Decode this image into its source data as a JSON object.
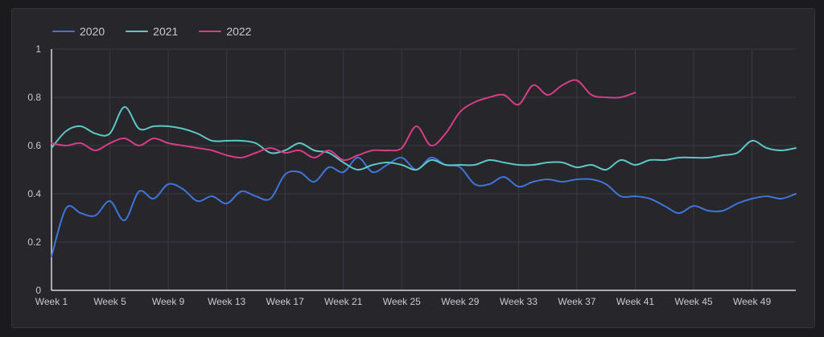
{
  "chart_data": {
    "type": "line",
    "title": "",
    "xlabel": "",
    "ylabel": "",
    "ylim": [
      0,
      1
    ],
    "yticks": [
      0,
      0.2,
      0.4,
      0.6,
      0.8,
      1
    ],
    "ytick_labels": [
      "0",
      "0.2",
      "0.4",
      "0.6",
      "0.8",
      "1"
    ],
    "xticks": [
      1,
      5,
      9,
      13,
      17,
      21,
      25,
      29,
      33,
      37,
      41,
      45,
      49
    ],
    "xtick_labels": [
      "Week 1",
      "Week 5",
      "Week 9",
      "Week 13",
      "Week 17",
      "Week 21",
      "Week 25",
      "Week 29",
      "Week 33",
      "Week 37",
      "Week 41",
      "Week 45",
      "Week 49"
    ],
    "xlim": [
      1,
      52
    ],
    "grid": true,
    "legend_position": "top-left",
    "series": [
      {
        "name": "2020",
        "color": "#3f74d8",
        "x": [
          1,
          2,
          3,
          4,
          5,
          6,
          7,
          8,
          9,
          10,
          11,
          12,
          13,
          14,
          15,
          16,
          17,
          18,
          19,
          20,
          21,
          22,
          23,
          24,
          25,
          26,
          27,
          28,
          29,
          30,
          31,
          32,
          33,
          34,
          35,
          36,
          37,
          38,
          39,
          40,
          41,
          42,
          43,
          44,
          45,
          46,
          47,
          48,
          49,
          50,
          51,
          52
        ],
        "values": [
          0.14,
          0.34,
          0.32,
          0.31,
          0.37,
          0.29,
          0.41,
          0.38,
          0.44,
          0.42,
          0.37,
          0.39,
          0.36,
          0.41,
          0.39,
          0.38,
          0.48,
          0.49,
          0.45,
          0.51,
          0.49,
          0.55,
          0.49,
          0.52,
          0.55,
          0.5,
          0.55,
          0.52,
          0.51,
          0.44,
          0.44,
          0.47,
          0.43,
          0.45,
          0.46,
          0.45,
          0.46,
          0.46,
          0.44,
          0.39,
          0.39,
          0.38,
          0.35,
          0.32,
          0.35,
          0.33,
          0.33,
          0.36,
          0.38,
          0.39,
          0.38,
          0.4
        ]
      },
      {
        "name": "2021",
        "color": "#5ec6c4",
        "x": [
          1,
          2,
          3,
          4,
          5,
          6,
          7,
          8,
          9,
          10,
          11,
          12,
          13,
          14,
          15,
          16,
          17,
          18,
          19,
          20,
          21,
          22,
          23,
          24,
          25,
          26,
          27,
          28,
          29,
          30,
          31,
          32,
          33,
          34,
          35,
          36,
          37,
          38,
          39,
          40,
          41,
          42,
          43,
          44,
          45,
          46,
          47,
          48,
          49,
          50,
          51,
          52
        ],
        "values": [
          0.59,
          0.66,
          0.68,
          0.65,
          0.65,
          0.76,
          0.67,
          0.68,
          0.68,
          0.67,
          0.65,
          0.62,
          0.62,
          0.62,
          0.61,
          0.57,
          0.58,
          0.61,
          0.58,
          0.57,
          0.53,
          0.5,
          0.52,
          0.53,
          0.52,
          0.5,
          0.54,
          0.52,
          0.52,
          0.52,
          0.54,
          0.53,
          0.52,
          0.52,
          0.53,
          0.53,
          0.51,
          0.52,
          0.5,
          0.54,
          0.52,
          0.54,
          0.54,
          0.55,
          0.55,
          0.55,
          0.56,
          0.57,
          0.62,
          0.59,
          0.58,
          0.59
        ]
      },
      {
        "name": "2022",
        "color": "#d63d86",
        "x": [
          1,
          2,
          3,
          4,
          5,
          6,
          7,
          8,
          9,
          10,
          11,
          12,
          13,
          14,
          15,
          16,
          17,
          18,
          19,
          20,
          21,
          22,
          23,
          24,
          25,
          26,
          27,
          28,
          29,
          30,
          31,
          32,
          33,
          34,
          35,
          36,
          37,
          38,
          39,
          40,
          41
        ],
        "values": [
          0.61,
          0.6,
          0.61,
          0.58,
          0.61,
          0.63,
          0.6,
          0.63,
          0.61,
          0.6,
          0.59,
          0.58,
          0.56,
          0.55,
          0.57,
          0.59,
          0.57,
          0.58,
          0.55,
          0.58,
          0.54,
          0.56,
          0.58,
          0.58,
          0.59,
          0.68,
          0.6,
          0.65,
          0.74,
          0.78,
          0.8,
          0.81,
          0.77,
          0.85,
          0.81,
          0.85,
          0.87,
          0.81,
          0.8,
          0.8,
          0.82
        ]
      }
    ]
  }
}
